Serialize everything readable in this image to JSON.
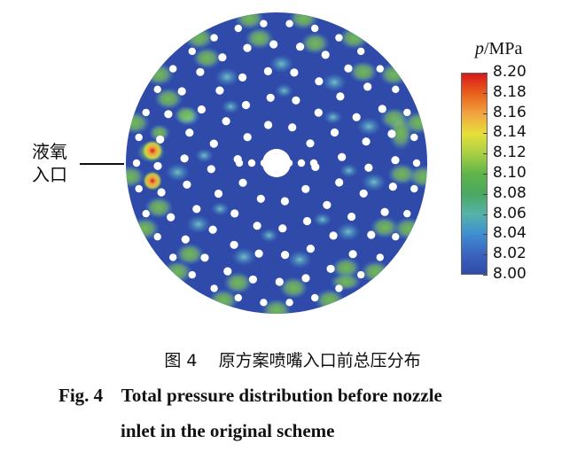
{
  "figure": {
    "inlet_label_line1": "液氧",
    "inlet_label_line2": "入口",
    "colorbar": {
      "title_var": "p",
      "title_unit": "/MPa",
      "ticks": [
        "8.20",
        "8.18",
        "8.16",
        "8.14",
        "8.12",
        "8.10",
        "8.08",
        "8.06",
        "8.04",
        "8.02",
        "8.00"
      ],
      "colors": [
        "#d7191c",
        "#e8601c",
        "#f1a340",
        "#e6e03a",
        "#a8cf44",
        "#5fb54a",
        "#4aa860",
        "#56b3a8",
        "#3f8fd0",
        "#3a64c0",
        "#2f4aa8"
      ]
    }
  },
  "caption": {
    "cn": "图 4    原方案喷嘴入口前总压分布",
    "en_line1": "Fig. 4    Total pressure distribution before nozzle",
    "en_line2": "inlet in the original scheme"
  },
  "chart_data": {
    "type": "heatmap",
    "title": "",
    "colorbar_label": "p/MPa",
    "colorbar_range": [
      8.0,
      8.2
    ],
    "colorbar_ticks": [
      8.2,
      8.18,
      8.16,
      8.14,
      8.12,
      8.1,
      8.08,
      8.06,
      8.04,
      8.02,
      8.0
    ],
    "annotation": "液氧入口",
    "max_pressure_region": "left edge near 液氧入口 (~8.20 MPa)",
    "background_pressure": 8.0
  }
}
